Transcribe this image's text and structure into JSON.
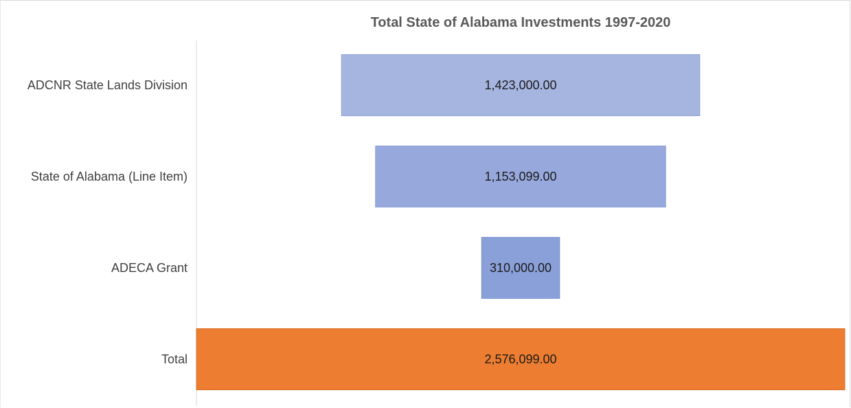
{
  "chart_data": {
    "type": "bar",
    "subtype": "funnel",
    "title": "Total State of Alabama Investments 1997-2020",
    "xlabel": "",
    "ylabel": "",
    "grid": false,
    "legend": "none",
    "categories": [
      "ADCNR State Lands Division",
      "State of Alabama (Line Item)",
      "ADECA Grant",
      "Total"
    ],
    "values": [
      1423000,
      1153099,
      310000,
      2576099
    ],
    "value_labels": [
      "1,423,000.00",
      "1,153,099.00",
      "310,000.00",
      "2,576,099.00"
    ],
    "bar_colors": [
      "#a6b5e0",
      "#97a8dc",
      "#8aa0d8",
      "#ed7d31"
    ],
    "bar_stroke_colors": [
      "#8c9fd6",
      "#8c9fd6",
      "#7f95d0",
      "#d96d24"
    ],
    "axis_line_color": "#d9d9d9"
  }
}
